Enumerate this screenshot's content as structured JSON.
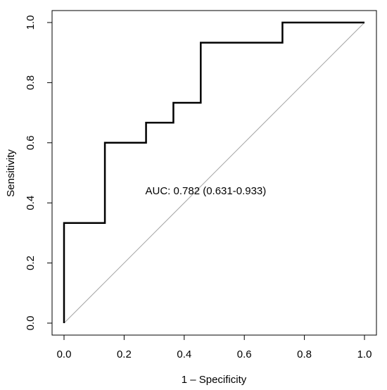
{
  "chart_data": {
    "type": "line",
    "title": "",
    "xlabel": "1 – Specificity",
    "ylabel": "Sensitivity",
    "xlim": [
      0,
      1
    ],
    "ylim": [
      0,
      1
    ],
    "xticks": [
      "0.0",
      "0.2",
      "0.4",
      "0.6",
      "0.8",
      "1.0"
    ],
    "yticks": [
      "0.0",
      "0.2",
      "0.4",
      "0.6",
      "0.8",
      "1.0"
    ],
    "grid": false,
    "series": [
      {
        "x": [
          0,
          0,
          0.136,
          0.136,
          0.273,
          0.273,
          0.364,
          0.364,
          0.455,
          0.455,
          0.727,
          0.727,
          1.0
        ],
        "y": [
          0,
          0.333,
          0.333,
          0.6,
          0.6,
          0.667,
          0.667,
          0.733,
          0.733,
          0.933,
          0.933,
          1.0,
          1.0
        ],
        "color": "#000000"
      }
    ],
    "reference_line": {
      "x": [
        0,
        1
      ],
      "y": [
        0,
        1
      ],
      "color": "#a6a6a6"
    },
    "annotation": {
      "text": "AUC: 0.782 (0.631-0.933)",
      "x": 0.5,
      "y": 0.44
    }
  }
}
